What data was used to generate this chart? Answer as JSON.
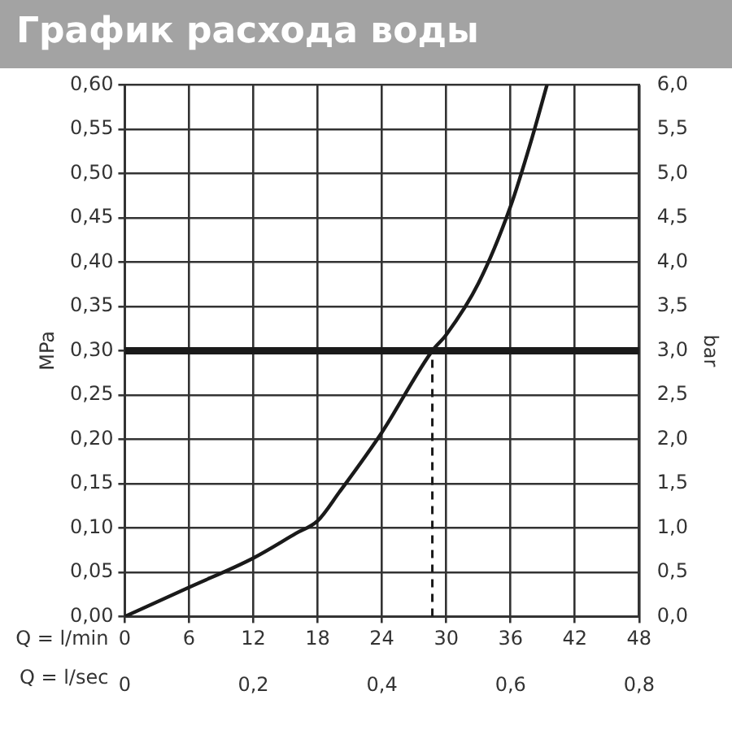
{
  "chart_data": {
    "type": "line",
    "title": "График расхода воды",
    "xlabel": "Q = l/min",
    "x2label": "Q = l/sec",
    "ylabel": "MPa",
    "y2label": "bar",
    "x": [
      0,
      6,
      12,
      16,
      18,
      20,
      24,
      28.7,
      30,
      33,
      36,
      38,
      39.4
    ],
    "series": [
      {
        "color": "#1a1a1a",
        "values": [
          0,
          0.033,
          0.066,
          0.094,
          0.108,
          0.14,
          0.208,
          0.3,
          0.318,
          0.376,
          0.463,
          0.54,
          0.6
        ]
      }
    ],
    "xlim": [
      0,
      48
    ],
    "xticks": [
      0,
      6,
      12,
      18,
      24,
      30,
      36,
      42,
      48
    ],
    "x2lim": [
      0,
      0.8
    ],
    "x2ticks": [
      0,
      {
        "value": 0.2,
        "label": "0,2"
      },
      {
        "value": 0.4,
        "label": "0,4"
      },
      {
        "value": 0.6,
        "label": "0,6"
      },
      {
        "value": 0.8,
        "label": "0,8"
      }
    ],
    "ylim": [
      0,
      0.6
    ],
    "yticks": [
      {
        "value": 0,
        "label": "0,00"
      },
      {
        "value": 0.05,
        "label": "0,05"
      },
      {
        "value": 0.1,
        "label": "0,10"
      },
      {
        "value": 0.15,
        "label": "0,15"
      },
      {
        "value": 0.2,
        "label": "0,20"
      },
      {
        "value": 0.25,
        "label": "0,25"
      },
      {
        "value": 0.3,
        "label": "0,30"
      },
      {
        "value": 0.35,
        "label": "0,35"
      },
      {
        "value": 0.4,
        "label": "0,40"
      },
      {
        "value": 0.45,
        "label": "0,45"
      },
      {
        "value": 0.5,
        "label": "0,50"
      },
      {
        "value": 0.55,
        "label": "0,55"
      },
      {
        "value": 0.6,
        "label": "0,60"
      }
    ],
    "y2lim": [
      0,
      6
    ],
    "y2ticks": [
      {
        "value": 0,
        "label": "0,0"
      },
      {
        "value": 0.5,
        "label": "0,5"
      },
      {
        "value": 1,
        "label": "1,0"
      },
      {
        "value": 1.5,
        "label": "1,5"
      },
      {
        "value": 2,
        "label": "2,0"
      },
      {
        "value": 2.5,
        "label": "2,5"
      },
      {
        "value": 3,
        "label": "3,0"
      },
      {
        "value": 3.5,
        "label": "3,5"
      },
      {
        "value": 4,
        "label": "4,0"
      },
      {
        "value": 4.5,
        "label": "4,5"
      },
      {
        "value": 5,
        "label": "5,0"
      },
      {
        "value": 5.5,
        "label": "5,5"
      },
      {
        "value": 6,
        "label": "6,0"
      }
    ],
    "ref_lines": [
      {
        "axis": "y",
        "value": 0.3,
        "color": "#1a1a1a",
        "line_style": "solid"
      },
      {
        "axis": "x",
        "value": 28.7,
        "color": "#1a1a1a",
        "line_style": "dashed"
      }
    ],
    "grid": true,
    "legend": false,
    "marker": "none",
    "line_style": "solid"
  }
}
